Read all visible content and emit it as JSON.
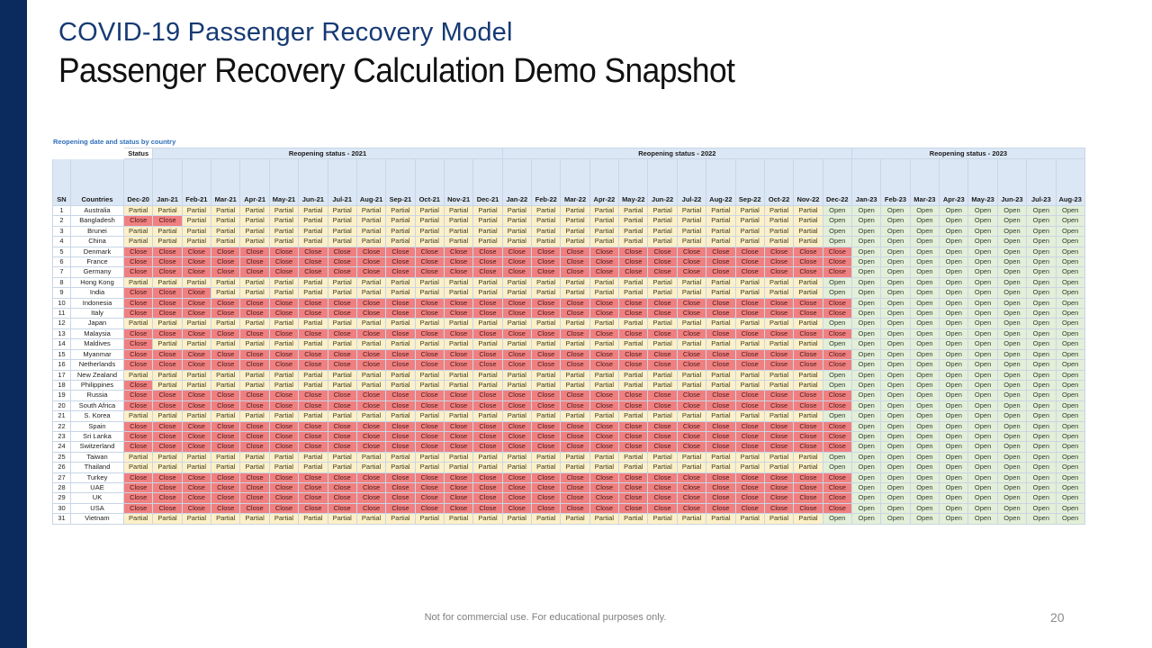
{
  "slide": {
    "title": "COVID-19 Passenger Recovery Model",
    "subtitle": "Passenger Recovery Calculation Demo Snapshot",
    "footer": "Not for commercial use. For educational purposes only.",
    "page_number": "20"
  },
  "table": {
    "caption": "Reopening date and status by country",
    "status_header": "Status",
    "groups": [
      {
        "label": "Reopening status - 2021",
        "span": 12
      },
      {
        "label": "Reopening status - 2022",
        "span": 12
      },
      {
        "label": "Reopening status - 2023",
        "span": 8
      }
    ],
    "sn_header": "SN",
    "country_header": "Countries",
    "months": [
      "Dec-20",
      "Jan-21",
      "Feb-21",
      "Mar-21",
      "Apr-21",
      "May-21",
      "Jun-21",
      "Jul-21",
      "Aug-21",
      "Sep-21",
      "Oct-21",
      "Nov-21",
      "Dec-21",
      "Jan-22",
      "Feb-22",
      "Mar-22",
      "Apr-22",
      "May-22",
      "Jun-22",
      "Jul-22",
      "Aug-22",
      "Sep-22",
      "Oct-22",
      "Nov-22",
      "Dec-22",
      "Jan-23",
      "Feb-23",
      "Mar-23",
      "Apr-23",
      "May-23",
      "Jun-23",
      "Jul-23",
      "Aug-23"
    ],
    "rows": [
      {
        "sn": "1",
        "country": "Australia",
        "pattern": "partial"
      },
      {
        "sn": "2",
        "country": "Bangladesh",
        "pattern": "close2-partial"
      },
      {
        "sn": "3",
        "country": "Brunei",
        "pattern": "partial"
      },
      {
        "sn": "4",
        "country": "China",
        "pattern": "partial"
      },
      {
        "sn": "5",
        "country": "Denmark",
        "pattern": "close"
      },
      {
        "sn": "6",
        "country": "France",
        "pattern": "close"
      },
      {
        "sn": "7",
        "country": "Germany",
        "pattern": "close"
      },
      {
        "sn": "8",
        "country": "Hong Kong",
        "pattern": "partial"
      },
      {
        "sn": "9",
        "country": "India",
        "pattern": "close3-partial"
      },
      {
        "sn": "10",
        "country": "Indonesia",
        "pattern": "close"
      },
      {
        "sn": "11",
        "country": "Italy",
        "pattern": "close"
      },
      {
        "sn": "12",
        "country": "Japan",
        "pattern": "partial"
      },
      {
        "sn": "13",
        "country": "Malaysia",
        "pattern": "close"
      },
      {
        "sn": "14",
        "country": "Maldives",
        "pattern": "close1-partial"
      },
      {
        "sn": "15",
        "country": "Myanmar",
        "pattern": "close"
      },
      {
        "sn": "16",
        "country": "Netherlands",
        "pattern": "close"
      },
      {
        "sn": "17",
        "country": "New Zealand",
        "pattern": "partial"
      },
      {
        "sn": "18",
        "country": "Philippines",
        "pattern": "close1-partial"
      },
      {
        "sn": "19",
        "country": "Russia",
        "pattern": "close"
      },
      {
        "sn": "20",
        "country": "South Africa",
        "pattern": "close"
      },
      {
        "sn": "21",
        "country": "S. Korea",
        "pattern": "partial"
      },
      {
        "sn": "22",
        "country": "Spain",
        "pattern": "close"
      },
      {
        "sn": "23",
        "country": "Sri Lanka",
        "pattern": "close"
      },
      {
        "sn": "24",
        "country": "Switzerland",
        "pattern": "close"
      },
      {
        "sn": "25",
        "country": "Taiwan",
        "pattern": "partial"
      },
      {
        "sn": "26",
        "country": "Thailand",
        "pattern": "partial"
      },
      {
        "sn": "27",
        "country": "Turkey",
        "pattern": "close"
      },
      {
        "sn": "28",
        "country": "UAE",
        "pattern": "close"
      },
      {
        "sn": "29",
        "country": "UK",
        "pattern": "close"
      },
      {
        "sn": "30",
        "country": "USA",
        "pattern": "close"
      },
      {
        "sn": "31",
        "country": "Vietnam",
        "pattern": "partial"
      }
    ],
    "status_colors": {
      "Close": "#f08080",
      "Partial": "#fdf0c8",
      "Open": "#e3efd8"
    }
  }
}
